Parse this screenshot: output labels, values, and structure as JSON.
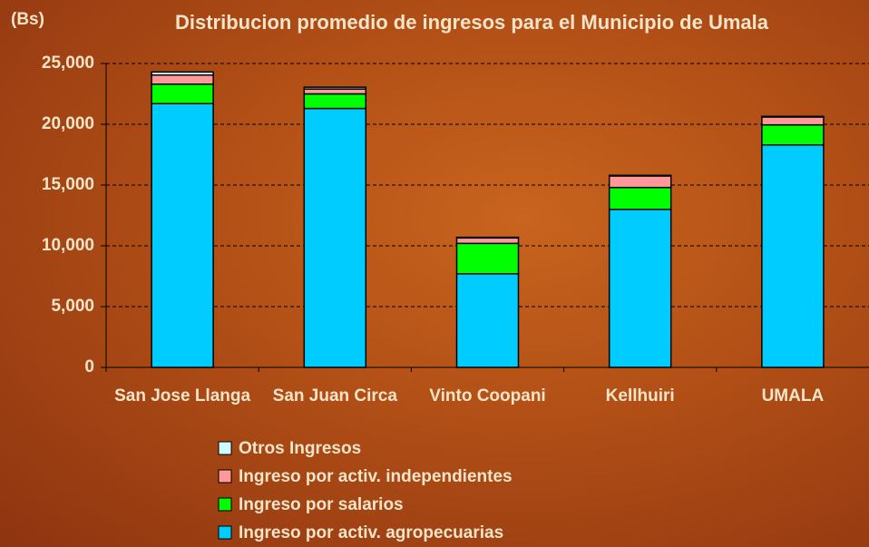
{
  "chart_data": {
    "type": "stacked_bar",
    "title": "Distribucion promedio de ingresos para el Municipio de Umala",
    "y_label": "(Bs)",
    "categories": [
      "San Jose Llanga",
      "San Juan Circa",
      "Vinto Coopani",
      "Kellhuiri",
      "UMALA"
    ],
    "series": [
      {
        "name": "Ingreso por activ. agropecuarias",
        "color": "#00ccff",
        "values": [
          21700,
          21300,
          7700,
          13000,
          18300
        ]
      },
      {
        "name": "Ingreso por salarios",
        "color": "#00ff00",
        "values": [
          1600,
          1200,
          2500,
          1800,
          1650
        ]
      },
      {
        "name": "Ingreso por activ. independientes",
        "color": "#ff9999",
        "values": [
          750,
          400,
          450,
          950,
          650
        ]
      },
      {
        "name": "Otros Ingresos",
        "color": "#ccffff",
        "values": [
          250,
          150,
          50,
          50,
          50
        ]
      }
    ],
    "ylim": [
      0,
      25000
    ],
    "yticks": [
      0,
      {
        "value": 5000,
        "label": "5,000"
      },
      {
        "value": 10000,
        "label": "10,000"
      },
      {
        "value": 15000,
        "label": "15,000"
      },
      {
        "value": 20000,
        "label": "20,000"
      },
      {
        "value": 25000,
        "label": "25,000"
      }
    ],
    "grid": true
  }
}
